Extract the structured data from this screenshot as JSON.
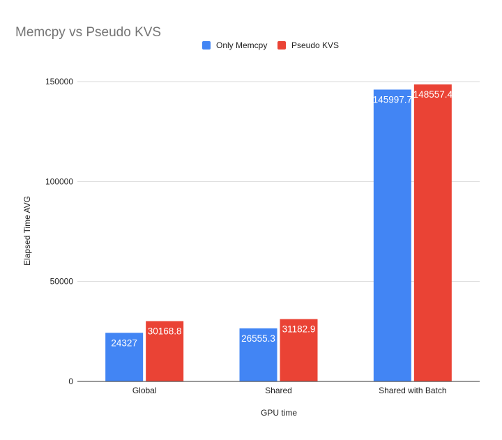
{
  "chart_data": {
    "type": "bar",
    "title": "Memcpy vs Pseudo KVS",
    "xlabel": "GPU time",
    "ylabel": "Elapsed Time AVG",
    "categories": [
      "Global",
      "Shared",
      "Shared with Batch"
    ],
    "series": [
      {
        "name": "Only Memcpy",
        "color": "#4285f4",
        "values": [
          24327,
          26555.3,
          145997.7
        ],
        "labels": [
          "24327",
          "26555.3",
          "145997.7"
        ]
      },
      {
        "name": "Pseudo KVS",
        "color": "#ea4335",
        "values": [
          30168.8,
          31182.9,
          148557.4
        ],
        "labels": [
          "30168.8",
          "31182.9",
          "148557.4"
        ]
      }
    ],
    "ylim": [
      0,
      160000
    ],
    "yticks": [
      0,
      50000,
      100000,
      150000
    ],
    "ytick_labels": [
      "0",
      "50000",
      "100000",
      "150000"
    ],
    "grid": true,
    "legend_position": "top"
  }
}
